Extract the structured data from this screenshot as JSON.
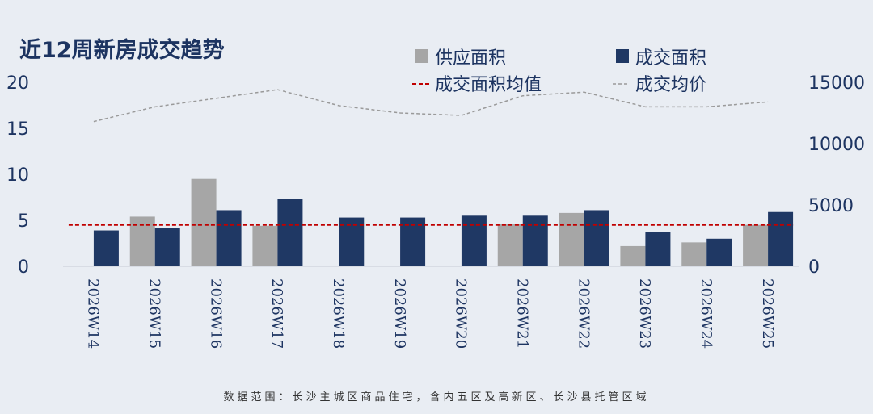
{
  "title": "近12周新房成交趋势",
  "footnote": "数据范围：长沙主城区商品住宅，含内五区及高新区、长沙县托管区域",
  "legend": {
    "supply": "供应面积",
    "deal": "成交面积",
    "mean": "成交面积均值",
    "price": "成交均价"
  },
  "colors": {
    "supply": "#a6a6a6",
    "deal": "#1f3864",
    "mean": "#c00000",
    "price": "#9a9a9a"
  },
  "chart_data": {
    "type": "bar",
    "categories": [
      "2026W14",
      "2026W15",
      "2026W16",
      "2026W17",
      "2026W18",
      "2026W19",
      "2026W20",
      "2026W21",
      "2026W22",
      "2026W23",
      "2026W24",
      "2026W25"
    ],
    "series": [
      {
        "name": "供应面积",
        "axis": "left",
        "values": [
          0,
          5.4,
          9.5,
          4.4,
          0,
          0,
          0,
          4.6,
          5.8,
          2.2,
          2.6,
          4.5
        ]
      },
      {
        "name": "成交面积",
        "axis": "left",
        "values": [
          3.9,
          4.2,
          6.1,
          7.3,
          5.3,
          5.3,
          5.5,
          5.5,
          6.1,
          3.7,
          3.0,
          5.9
        ]
      },
      {
        "name": "成交面积均值",
        "axis": "left",
        "type": "line",
        "style": "dashed",
        "values": [
          4.5,
          4.5,
          4.5,
          4.5,
          4.5,
          4.5,
          4.5,
          4.5,
          4.5,
          4.5,
          4.5,
          4.5
        ]
      },
      {
        "name": "成交均价",
        "axis": "right",
        "type": "line",
        "style": "dashed",
        "values": [
          11800,
          13000,
          13700,
          14400,
          13100,
          12500,
          12300,
          13900,
          14200,
          13000,
          13000,
          13400
        ]
      }
    ],
    "left_ylim": [
      0,
      20
    ],
    "left_yticks": [
      "0",
      "5",
      "10",
      "15",
      "20"
    ],
    "right_ylim": [
      0,
      15000
    ],
    "right_yticks": [
      "0",
      "5000",
      "10000",
      "15000"
    ],
    "legend_position": "top-right",
    "grid": false
  }
}
